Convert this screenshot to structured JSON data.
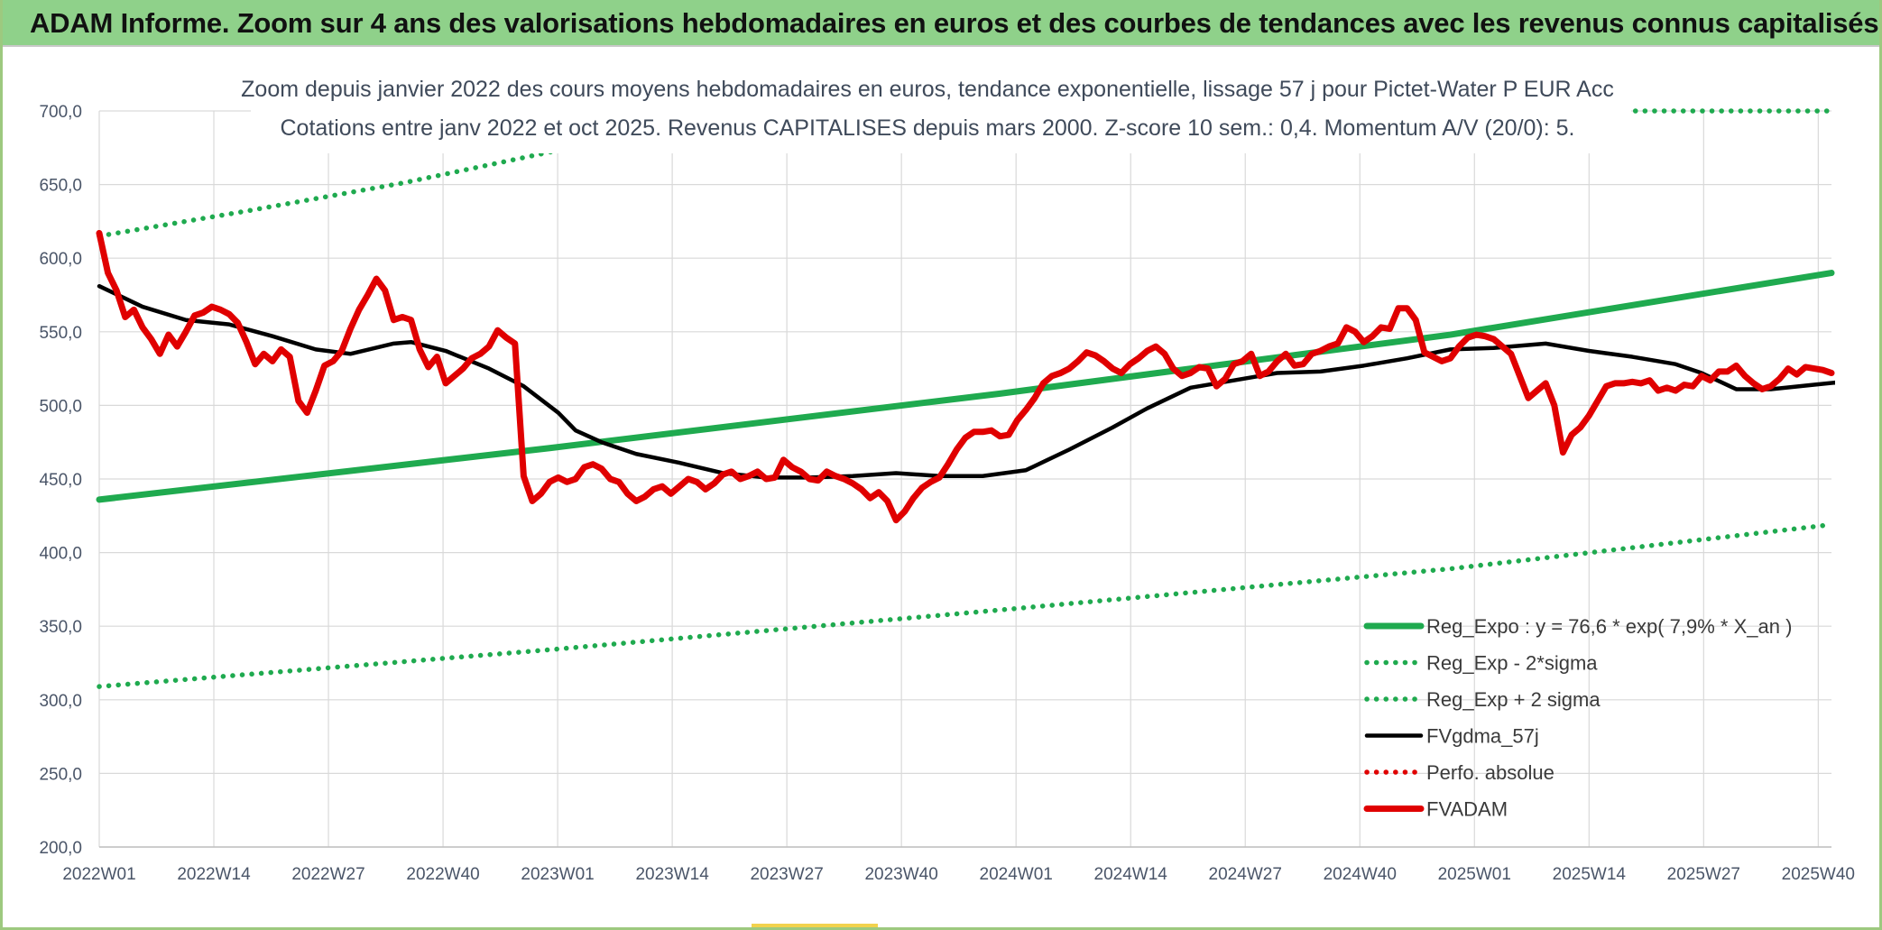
{
  "header": {
    "title": "ADAM Informe. Zoom sur 4 ans des valorisations hebdomadaires en euros et des courbes de tendances avec les revenus connus capitalisés"
  },
  "chart_data": {
    "type": "line",
    "title": "Zoom depuis janvier 2022 des cours moyens hebdomadaires en euros, tendance exponentielle, lissage 57 j pour Pictet-Water P EUR Acc",
    "subtitle": "Cotations entre janv 2022 et oct 2025. Revenus CAPITALISES depuis mars 2000. Z-score 10 sem.: 0,4. Momentum A/V (20/0): 5.",
    "xlabel": "",
    "ylabel": "",
    "ylim": [
      200,
      700
    ],
    "y_ticks": [
      "700,0",
      "650,0",
      "600,0",
      "550,0",
      "500,0",
      "450,0",
      "400,0",
      "350,0",
      "300,0",
      "250,0",
      "200,0"
    ],
    "x_ticks": [
      "2022W01",
      "2022W14",
      "2022W27",
      "2022W40",
      "2023W01",
      "2023W14",
      "2023W27",
      "2023W40",
      "2024W01",
      "2024W14",
      "2024W27",
      "2024W40",
      "2025W01",
      "2025W14",
      "2025W27",
      "2025W40"
    ],
    "x_range_weeks": [
      0,
      200
    ],
    "grid": true,
    "legend_position": "bottom-right",
    "series": [
      {
        "name": "Reg_Expo : y = 76,6 * exp( 7,9% *  X_an )",
        "color": "#1faa4f",
        "style": "solid-thick",
        "points": [
          [
            0,
            436
          ],
          [
            52,
            471
          ],
          [
            104,
            508
          ],
          [
            156,
            548
          ],
          [
            200,
            590
          ]
        ]
      },
      {
        "name": "Reg_Exp - 2*sigma",
        "color": "#1faa4f",
        "style": "dotted",
        "points": [
          [
            0,
            309
          ],
          [
            52,
            334
          ],
          [
            104,
            361
          ],
          [
            156,
            389
          ],
          [
            200,
            419
          ]
        ]
      },
      {
        "name": "Reg_Exp + 2 sigma",
        "color": "#1faa4f",
        "style": "dotted",
        "points": [
          [
            0,
            615
          ],
          [
            17,
            632
          ],
          [
            35,
            651
          ],
          [
            52,
            672
          ],
          [
            62,
            684
          ],
          [
            71,
            700
          ],
          [
            175,
            700
          ],
          [
            200,
            700
          ]
        ]
      },
      {
        "name": "FVgdma_57j",
        "color": "#000000",
        "style": "solid",
        "points": [
          [
            0,
            581
          ],
          [
            5,
            567
          ],
          [
            10,
            558
          ],
          [
            15,
            555
          ],
          [
            20,
            547
          ],
          [
            25,
            538
          ],
          [
            29,
            535
          ],
          [
            34,
            542
          ],
          [
            36,
            543
          ],
          [
            40,
            537
          ],
          [
            45,
            525
          ],
          [
            49,
            513
          ],
          [
            53,
            495
          ],
          [
            55,
            483
          ],
          [
            58,
            475
          ],
          [
            62,
            467
          ],
          [
            67,
            461
          ],
          [
            72,
            454
          ],
          [
            77,
            451
          ],
          [
            82,
            451
          ],
          [
            87,
            452
          ],
          [
            92,
            454
          ],
          [
            97,
            452
          ],
          [
            102,
            452
          ],
          [
            107,
            456
          ],
          [
            112,
            470
          ],
          [
            117,
            485
          ],
          [
            121,
            498
          ],
          [
            126,
            512
          ],
          [
            131,
            517
          ],
          [
            136,
            522
          ],
          [
            141,
            523
          ],
          [
            146,
            527
          ],
          [
            151,
            532
          ],
          [
            156,
            538
          ],
          [
            161,
            539
          ],
          [
            167,
            542
          ],
          [
            172,
            537
          ],
          [
            177,
            533
          ],
          [
            182,
            528
          ],
          [
            185,
            522
          ],
          [
            189,
            511
          ],
          [
            193,
            511
          ],
          [
            198,
            514
          ],
          [
            203,
            517
          ],
          [
            208,
            519
          ],
          [
            215,
            520
          ],
          [
            225,
            521
          ]
        ]
      },
      {
        "name": "Perfo. absolue",
        "color": "#e00000",
        "style": "dotted",
        "points": []
      },
      {
        "name": "FVADAM",
        "color": "#e00000",
        "style": "solid-thick",
        "points": [
          [
            0,
            617
          ],
          [
            1,
            590
          ],
          [
            2,
            578
          ],
          [
            3,
            560
          ],
          [
            4,
            565
          ],
          [
            5,
            553
          ],
          [
            6,
            545
          ],
          [
            7,
            535
          ],
          [
            8,
            548
          ],
          [
            9,
            540
          ],
          [
            10,
            550
          ],
          [
            11,
            561
          ],
          [
            12,
            563
          ],
          [
            13,
            567
          ],
          [
            14,
            565
          ],
          [
            15,
            562
          ],
          [
            16,
            556
          ],
          [
            17,
            543
          ],
          [
            18,
            528
          ],
          [
            19,
            535
          ],
          [
            20,
            530
          ],
          [
            21,
            538
          ],
          [
            22,
            533
          ],
          [
            23,
            503
          ],
          [
            24,
            495
          ],
          [
            25,
            510
          ],
          [
            26,
            527
          ],
          [
            27,
            530
          ],
          [
            28,
            537
          ],
          [
            29,
            552
          ],
          [
            30,
            565
          ],
          [
            31,
            575
          ],
          [
            32,
            586
          ],
          [
            33,
            578
          ],
          [
            34,
            558
          ],
          [
            35,
            560
          ],
          [
            36,
            558
          ],
          [
            37,
            538
          ],
          [
            38,
            526
          ],
          [
            39,
            533
          ],
          [
            40,
            515
          ],
          [
            41,
            520
          ],
          [
            42,
            525
          ],
          [
            43,
            532
          ],
          [
            44,
            535
          ],
          [
            45,
            540
          ],
          [
            46,
            551
          ],
          [
            47,
            546
          ],
          [
            48,
            542
          ],
          [
            49,
            452
          ],
          [
            50,
            435
          ],
          [
            51,
            440
          ],
          [
            52,
            448
          ],
          [
            53,
            451
          ],
          [
            54,
            448
          ],
          [
            55,
            450
          ],
          [
            56,
            458
          ],
          [
            57,
            460
          ],
          [
            58,
            457
          ],
          [
            59,
            450
          ],
          [
            60,
            448
          ],
          [
            61,
            440
          ],
          [
            62,
            435
          ],
          [
            63,
            438
          ],
          [
            64,
            443
          ],
          [
            65,
            445
          ],
          [
            66,
            440
          ],
          [
            67,
            445
          ],
          [
            68,
            450
          ],
          [
            69,
            448
          ],
          [
            70,
            443
          ],
          [
            71,
            447
          ],
          [
            72,
            453
          ],
          [
            73,
            455
          ],
          [
            74,
            450
          ],
          [
            75,
            452
          ],
          [
            76,
            455
          ],
          [
            77,
            450
          ],
          [
            78,
            451
          ],
          [
            79,
            463
          ],
          [
            80,
            458
          ],
          [
            81,
            455
          ],
          [
            82,
            450
          ],
          [
            83,
            449
          ],
          [
            84,
            455
          ],
          [
            85,
            452
          ],
          [
            86,
            450
          ],
          [
            87,
            447
          ],
          [
            88,
            443
          ],
          [
            89,
            437
          ],
          [
            90,
            441
          ],
          [
            91,
            435
          ],
          [
            92,
            422
          ],
          [
            93,
            428
          ],
          [
            94,
            437
          ],
          [
            95,
            444
          ],
          [
            96,
            448
          ],
          [
            97,
            451
          ],
          [
            98,
            460
          ],
          [
            99,
            470
          ],
          [
            100,
            478
          ],
          [
            101,
            482
          ],
          [
            102,
            482
          ],
          [
            103,
            483
          ],
          [
            104,
            479
          ],
          [
            105,
            480
          ],
          [
            106,
            490
          ],
          [
            107,
            497
          ],
          [
            108,
            505
          ],
          [
            109,
            515
          ],
          [
            110,
            520
          ],
          [
            111,
            522
          ],
          [
            112,
            525
          ],
          [
            113,
            530
          ],
          [
            114,
            536
          ],
          [
            115,
            534
          ],
          [
            116,
            530
          ],
          [
            117,
            525
          ],
          [
            118,
            522
          ],
          [
            119,
            528
          ],
          [
            120,
            532
          ],
          [
            121,
            537
          ],
          [
            122,
            540
          ],
          [
            123,
            535
          ],
          [
            124,
            525
          ],
          [
            125,
            520
          ],
          [
            126,
            522
          ],
          [
            127,
            526
          ],
          [
            128,
            525
          ],
          [
            129,
            513
          ],
          [
            130,
            518
          ],
          [
            131,
            528
          ],
          [
            132,
            530
          ],
          [
            133,
            535
          ],
          [
            134,
            520
          ],
          [
            135,
            523
          ],
          [
            136,
            530
          ],
          [
            137,
            535
          ],
          [
            138,
            527
          ],
          [
            139,
            528
          ],
          [
            140,
            535
          ],
          [
            141,
            537
          ],
          [
            142,
            540
          ],
          [
            143,
            542
          ],
          [
            144,
            553
          ],
          [
            145,
            550
          ],
          [
            146,
            543
          ],
          [
            147,
            547
          ],
          [
            148,
            553
          ],
          [
            149,
            552
          ],
          [
            150,
            566
          ],
          [
            151,
            566
          ],
          [
            152,
            558
          ],
          [
            153,
            536
          ],
          [
            154,
            533
          ],
          [
            155,
            530
          ],
          [
            156,
            532
          ],
          [
            157,
            540
          ],
          [
            158,
            546
          ],
          [
            159,
            548
          ],
          [
            160,
            547
          ],
          [
            161,
            545
          ],
          [
            162,
            540
          ],
          [
            163,
            535
          ],
          [
            164,
            520
          ],
          [
            165,
            505
          ],
          [
            166,
            510
          ],
          [
            167,
            515
          ],
          [
            168,
            500
          ],
          [
            169,
            468
          ],
          [
            170,
            480
          ],
          [
            171,
            485
          ],
          [
            172,
            493
          ],
          [
            173,
            503
          ],
          [
            174,
            513
          ],
          [
            175,
            515
          ],
          [
            176,
            515
          ],
          [
            177,
            516
          ],
          [
            178,
            515
          ],
          [
            179,
            517
          ],
          [
            180,
            510
          ],
          [
            181,
            512
          ],
          [
            182,
            510
          ],
          [
            183,
            514
          ],
          [
            184,
            513
          ],
          [
            185,
            520
          ],
          [
            186,
            517
          ],
          [
            187,
            523
          ],
          [
            188,
            523
          ],
          [
            189,
            527
          ],
          [
            190,
            520
          ],
          [
            191,
            515
          ],
          [
            192,
            511
          ],
          [
            193,
            513
          ],
          [
            194,
            518
          ],
          [
            195,
            525
          ],
          [
            196,
            521
          ],
          [
            197,
            526
          ],
          [
            198,
            525
          ],
          [
            199,
            524
          ],
          [
            200,
            522
          ]
        ]
      }
    ]
  }
}
